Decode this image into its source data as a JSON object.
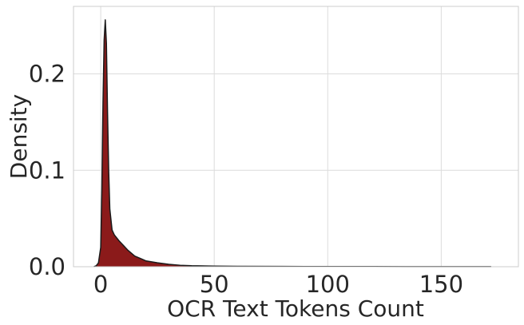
{
  "chart_data": {
    "type": "area",
    "title": "",
    "xlabel": "OCR Text Tokens Count",
    "ylabel": "Density",
    "xlim": [
      -12,
      184
    ],
    "ylim": [
      0,
      0.27
    ],
    "xticks": [
      0,
      50,
      100,
      150
    ],
    "xtick_labels": [
      "0",
      "50",
      "100",
      "150"
    ],
    "yticks": [
      0,
      0.1,
      0.2
    ],
    "ytick_labels": [
      "0.0",
      "0.1",
      "0.2"
    ],
    "grid": true,
    "legend": "none",
    "series": [
      {
        "fill_color": "#8b1a1a",
        "edge_color": "#1a1a1a",
        "x": [
          -3,
          -2,
          -1,
          0,
          0.5,
          1,
          1.5,
          2,
          2.5,
          3,
          3.5,
          4,
          5,
          6,
          8,
          10,
          12,
          15,
          18,
          20,
          25,
          30,
          35,
          40,
          50,
          60,
          80,
          100,
          120,
          140,
          160,
          172
        ],
        "y": [
          0,
          0.001,
          0.004,
          0.02,
          0.08,
          0.17,
          0.235,
          0.256,
          0.232,
          0.16,
          0.1,
          0.06,
          0.038,
          0.033,
          0.027,
          0.022,
          0.017,
          0.011,
          0.008,
          0.006,
          0.004,
          0.0025,
          0.0015,
          0.001,
          0.0006,
          0.0004,
          0.0003,
          0.0002,
          0.0002,
          0.0001,
          0.0001,
          0.0001
        ]
      }
    ]
  }
}
